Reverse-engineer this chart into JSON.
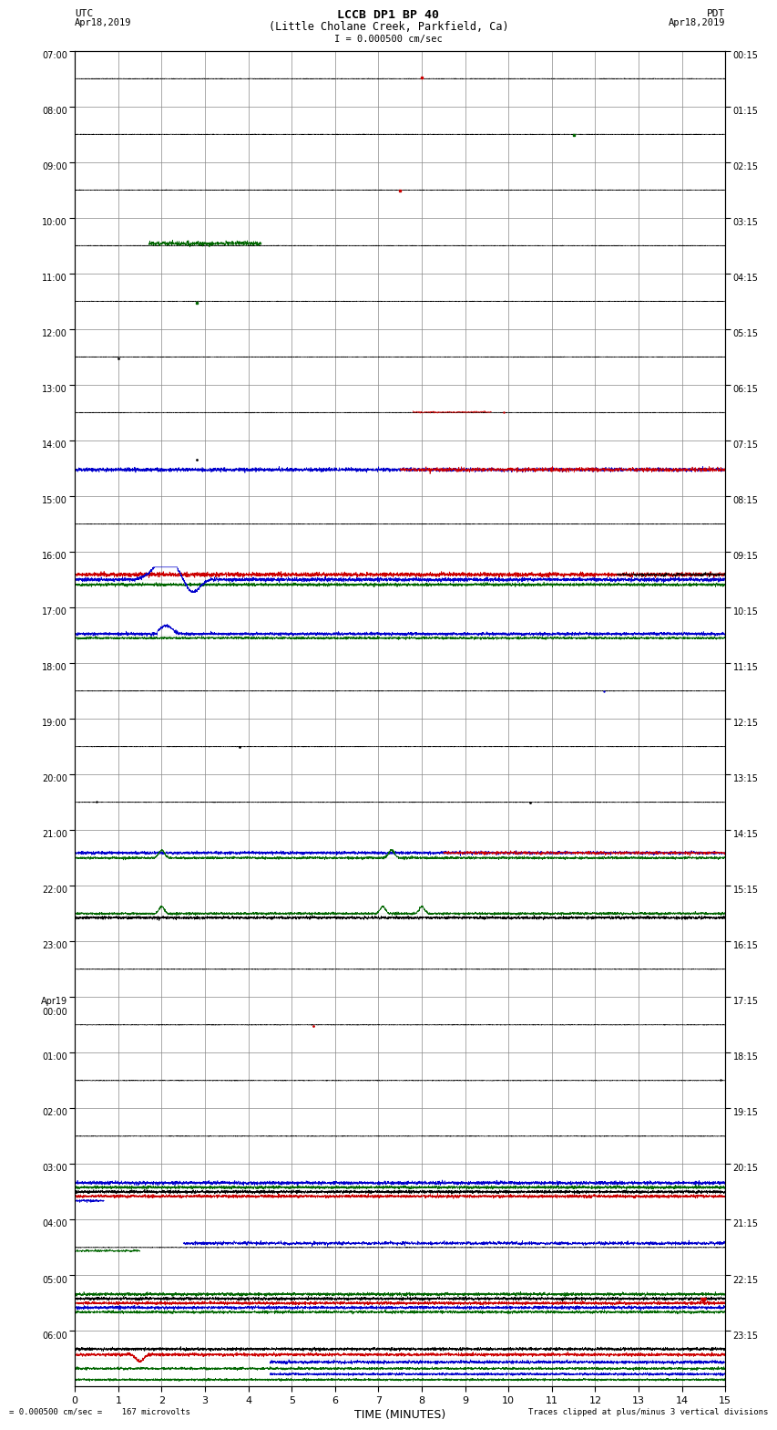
{
  "title_line1": "LCCB DP1 BP 40",
  "title_line2": "(Little Cholane Creek, Parkfield, Ca)",
  "scale_text": "I = 0.000500 cm/sec",
  "left_label_top": "UTC",
  "left_label_bot": "Apr18,2019",
  "right_label_top": "PDT",
  "right_label_bot": "Apr18,2019",
  "bottom_label_left": "= 0.000500 cm/sec =    167 microvolts",
  "bottom_label_right": "Traces clipped at plus/minus 3 vertical divisions",
  "xlabel": "TIME (MINUTES)",
  "utc_times": [
    "07:00",
    "08:00",
    "09:00",
    "10:00",
    "11:00",
    "12:00",
    "13:00",
    "14:00",
    "15:00",
    "16:00",
    "17:00",
    "18:00",
    "19:00",
    "20:00",
    "21:00",
    "22:00",
    "23:00",
    "Apr19\n00:00",
    "01:00",
    "02:00",
    "03:00",
    "04:00",
    "05:00",
    "06:00"
  ],
  "pdt_times": [
    "00:15",
    "01:15",
    "02:15",
    "03:15",
    "04:15",
    "05:15",
    "06:15",
    "07:15",
    "08:15",
    "09:15",
    "10:15",
    "11:15",
    "12:15",
    "13:15",
    "14:15",
    "15:15",
    "16:15",
    "17:15",
    "18:15",
    "19:15",
    "20:15",
    "21:15",
    "22:15",
    "23:15"
  ],
  "xmin": 0,
  "xmax": 15,
  "background_color": "#ffffff",
  "grid_color": "#aaaaaa",
  "trace_colors": {
    "red": "#cc0000",
    "blue": "#0000cc",
    "green": "#006600",
    "black": "#000000"
  }
}
